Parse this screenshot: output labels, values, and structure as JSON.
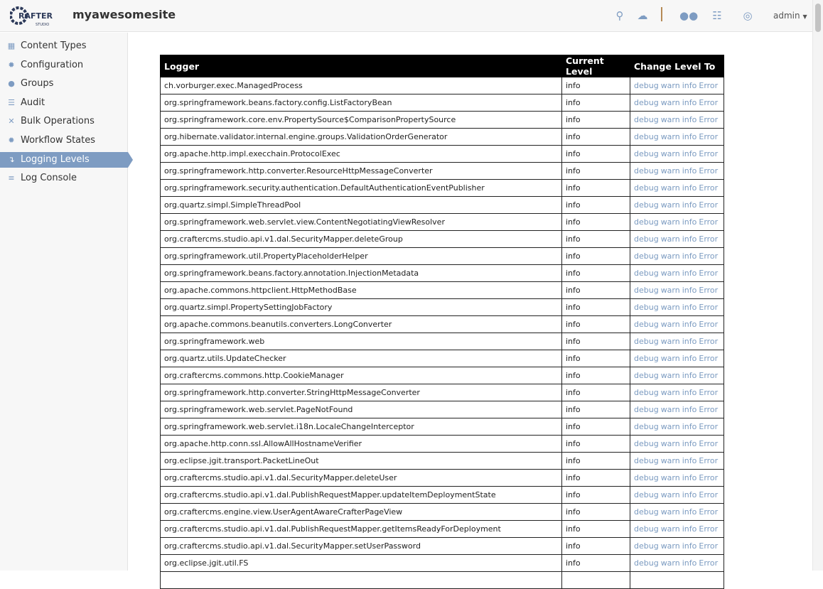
{
  "header": {
    "logo_text": "CRAFTER STUDIO",
    "site_name": "myawesomesite",
    "user": "admin",
    "icons": [
      "search-icon",
      "cloud-upload-icon",
      "users-icon",
      "sitemap-icon",
      "help-lifebuoy-icon"
    ]
  },
  "sidebar": {
    "items": [
      {
        "label": "Content Types",
        "icon": "grid-icon"
      },
      {
        "label": "Configuration",
        "icon": "gear-icon"
      },
      {
        "label": "Groups",
        "icon": "users-icon"
      },
      {
        "label": "Audit",
        "icon": "list-icon"
      },
      {
        "label": "Bulk Operations",
        "icon": "arrows-icon"
      },
      {
        "label": "Workflow States",
        "icon": "gear-icon"
      },
      {
        "label": "Logging Levels",
        "icon": "level-down-icon",
        "active": true
      },
      {
        "label": "Log Console",
        "icon": "align-left-icon"
      }
    ]
  },
  "table": {
    "headers": [
      "Logger",
      "Current Level",
      "Change Level To"
    ],
    "actions": [
      "debug",
      "warn",
      "info",
      "Error"
    ],
    "rows": [
      {
        "logger": "ch.vorburger.exec.ManagedProcess",
        "level": "info"
      },
      {
        "logger": "org.springframework.beans.factory.config.ListFactoryBean",
        "level": "info"
      },
      {
        "logger": "org.springframework.core.env.PropertySource$ComparisonPropertySource",
        "level": "info"
      },
      {
        "logger": "org.hibernate.validator.internal.engine.groups.ValidationOrderGenerator",
        "level": "info"
      },
      {
        "logger": "org.apache.http.impl.execchain.ProtocolExec",
        "level": "info"
      },
      {
        "logger": "org.springframework.http.converter.ResourceHttpMessageConverter",
        "level": "info"
      },
      {
        "logger": "org.springframework.security.authentication.DefaultAuthenticationEventPublisher",
        "level": "info"
      },
      {
        "logger": "org.quartz.simpl.SimpleThreadPool",
        "level": "info"
      },
      {
        "logger": "org.springframework.web.servlet.view.ContentNegotiatingViewResolver",
        "level": "info"
      },
      {
        "logger": "org.craftercms.studio.api.v1.dal.SecurityMapper.deleteGroup",
        "level": "info"
      },
      {
        "logger": "org.springframework.util.PropertyPlaceholderHelper",
        "level": "info"
      },
      {
        "logger": "org.springframework.beans.factory.annotation.InjectionMetadata",
        "level": "info"
      },
      {
        "logger": "org.apache.commons.httpclient.HttpMethodBase",
        "level": "info"
      },
      {
        "logger": "org.quartz.simpl.PropertySettingJobFactory",
        "level": "info"
      },
      {
        "logger": "org.apache.commons.beanutils.converters.LongConverter",
        "level": "info"
      },
      {
        "logger": "org.springframework.web",
        "level": "info"
      },
      {
        "logger": "org.quartz.utils.UpdateChecker",
        "level": "info"
      },
      {
        "logger": "org.craftercms.commons.http.CookieManager",
        "level": "info"
      },
      {
        "logger": "org.springframework.http.converter.StringHttpMessageConverter",
        "level": "info"
      },
      {
        "logger": "org.springframework.web.servlet.PageNotFound",
        "level": "info"
      },
      {
        "logger": "org.springframework.web.servlet.i18n.LocaleChangeInterceptor",
        "level": "info"
      },
      {
        "logger": "org.apache.http.conn.ssl.AllowAllHostnameVerifier",
        "level": "info"
      },
      {
        "logger": "org.eclipse.jgit.transport.PacketLineOut",
        "level": "info"
      },
      {
        "logger": "org.craftercms.studio.api.v1.dal.SecurityMapper.deleteUser",
        "level": "info"
      },
      {
        "logger": "org.craftercms.studio.api.v1.dal.PublishRequestMapper.updateItemDeploymentState",
        "level": "info"
      },
      {
        "logger": "org.craftercms.engine.view.UserAgentAwareCrafterPageView",
        "level": "info"
      },
      {
        "logger": "org.craftercms.studio.api.v1.dal.PublishRequestMapper.getItemsReadyForDeployment",
        "level": "info"
      },
      {
        "logger": "org.craftercms.studio.api.v1.dal.SecurityMapper.setUserPassword",
        "level": "info"
      },
      {
        "logger": "org.eclipse.jgit.util.FS",
        "level": "info"
      },
      {
        "logger": "",
        "level": ""
      }
    ]
  },
  "colors": {
    "accent": "#7e9cc2",
    "link": "#7a9ac0",
    "separator": "#b58a55"
  }
}
